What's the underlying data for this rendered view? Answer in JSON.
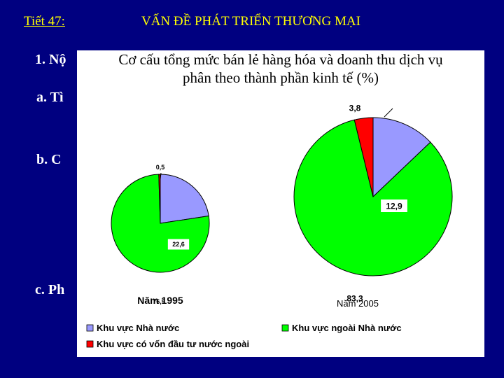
{
  "slide": {
    "lesson_label": "Tiết 47:",
    "title": "VẤN ĐỀ PHÁT TRIỂN THƯƠNG MẠI",
    "outline": [
      "1. Nộ",
      "a. Tì",
      "b. C",
      "c. Ph"
    ]
  },
  "chart_data": {
    "type": "pie",
    "title_line1": "Cơ cấu tổng mức bán lẻ hàng hóa và doanh thu dịch vụ",
    "title_line2": "phân theo thành phần kinh tế (%)",
    "categories": [
      "Khu vực Nhà nước",
      "Khu vực ngoài Nhà nước",
      "Khu vực có vốn đầu tư nước ngoài"
    ],
    "colors": [
      "#9999ff",
      "#00ff00",
      "#ff0000"
    ],
    "series": [
      {
        "name": "Năm 1995",
        "values": [
          22.6,
          76.9,
          0.5
        ],
        "labels": [
          "22,6",
          "76,9",
          "0,5"
        ]
      },
      {
        "name": "Năm 2005",
        "values": [
          12.9,
          83.3,
          3.8
        ],
        "labels": [
          "12,9",
          "83,3",
          "3,8"
        ]
      }
    ],
    "legend_position": "bottom"
  }
}
